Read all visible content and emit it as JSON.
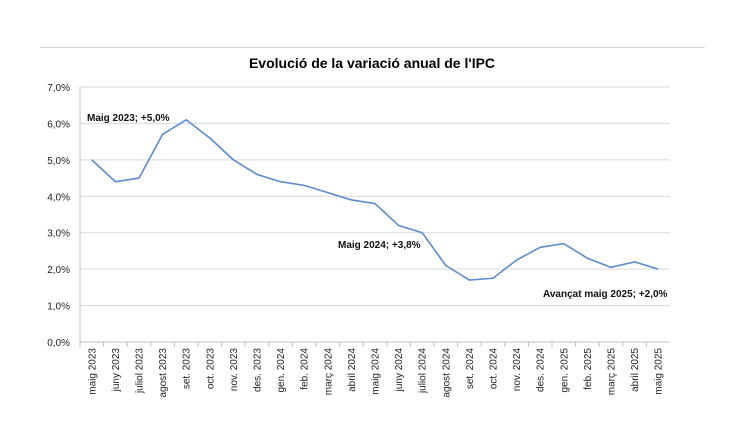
{
  "chart_data": {
    "type": "line",
    "title": "Evolució de la variació anual de l'IPC",
    "xlabel": "",
    "ylabel": "",
    "categories": [
      "maig 2023",
      "juny 2023",
      "juliol 2023",
      "agost 2023",
      "set. 2023",
      "oct. 2023",
      "nov. 2023",
      "des. 2023",
      "gen. 2024",
      "feb. 2024",
      "març 2024",
      "abril 2024",
      "maig 2024",
      "juny 2024",
      "juliol 2024",
      "agost 2024",
      "set. 2024",
      "oct. 2024",
      "nov. 2024",
      "des. 2024",
      "gen. 2025",
      "feb. 2025",
      "març 2025",
      "abril 2025",
      "maig 2025"
    ],
    "values": [
      5.0,
      4.4,
      4.5,
      5.7,
      6.1,
      5.6,
      5.0,
      4.6,
      4.4,
      4.3,
      4.1,
      3.9,
      3.8,
      3.2,
      3.0,
      2.1,
      1.7,
      1.75,
      2.25,
      2.6,
      2.7,
      2.3,
      2.05,
      2.2,
      2.0
    ],
    "ylim": [
      0,
      7
    ],
    "yticks": [
      "0,0%",
      "1,0%",
      "2,0%",
      "3,0%",
      "4,0%",
      "5,0%",
      "6,0%",
      "7,0%"
    ],
    "grid": true,
    "line_color": "#5b8bd0",
    "annotations": [
      {
        "text": "Maig 2023; +5,0%",
        "index": 0
      },
      {
        "text": "Maig 2024;  +3,8%",
        "index": 12
      },
      {
        "text": "Avançat maig 2025; +2,0%",
        "index": 24
      }
    ]
  }
}
